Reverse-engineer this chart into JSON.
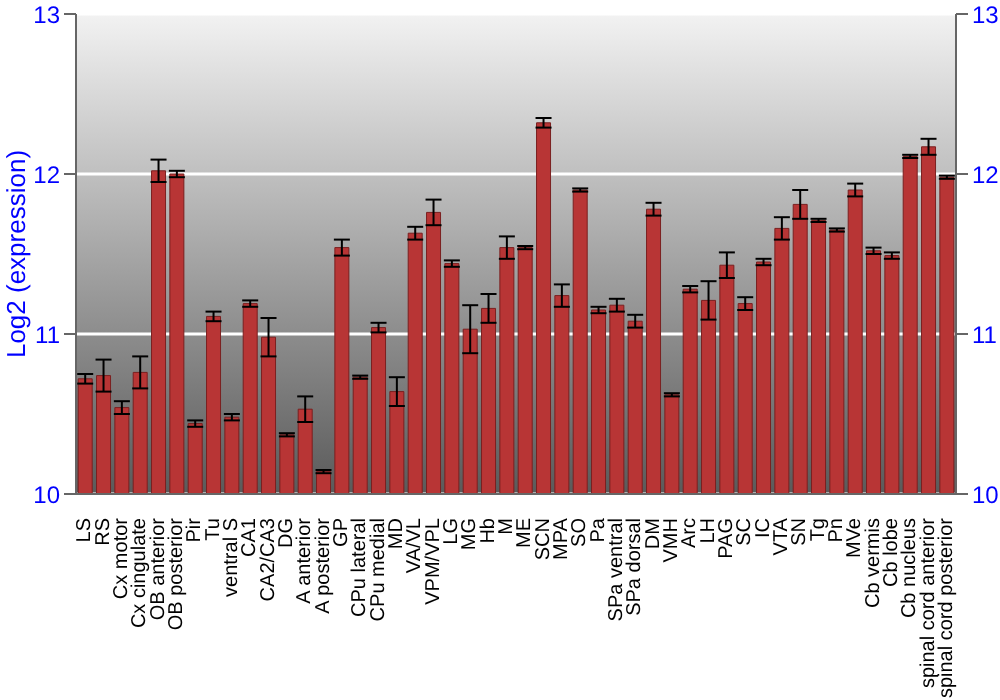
{
  "chart_data": {
    "type": "bar",
    "ylabel": "Log2 (expression)",
    "categories": [
      "LS",
      "RS",
      "Cx motor",
      "Cx cingulate",
      "OB anterior",
      "OB posterior",
      "Pir",
      "Tu",
      "ventral S",
      "CA1",
      "CA2/CA3",
      "DG",
      "A anterior",
      "A posterior",
      "GP",
      "CPu lateral",
      "CPu medial",
      "MD",
      "VA/VL",
      "VPM/VPL",
      "LG",
      "MG",
      "Hb",
      "M",
      "ME",
      "SCN",
      "MPA",
      "SO",
      "Pa",
      "SPa ventral",
      "SPa dorsal",
      "DM",
      "VMH",
      "Arc",
      "LH",
      "PAG",
      "SC",
      "IC",
      "VTA",
      "SN",
      "Tg",
      "Pn",
      "MVe",
      "Cb vermis",
      "Cb lobe",
      "Cb nucleus",
      "spinal cord anterior",
      "spinal cord posterior"
    ],
    "values": [
      10.72,
      10.74,
      10.54,
      10.76,
      12.02,
      12.0,
      10.44,
      11.11,
      10.48,
      11.19,
      10.98,
      10.37,
      10.53,
      10.14,
      11.54,
      10.73,
      11.04,
      10.64,
      11.63,
      11.76,
      11.44,
      11.03,
      11.16,
      11.54,
      11.54,
      12.32,
      11.24,
      11.9,
      11.15,
      11.18,
      11.08,
      11.78,
      10.62,
      11.28,
      11.21,
      11.43,
      11.19,
      11.45,
      11.66,
      11.81,
      11.71,
      11.65,
      11.9,
      11.52,
      11.49,
      12.11,
      12.17,
      11.98
    ],
    "errors": [
      0.03,
      0.1,
      0.04,
      0.1,
      0.07,
      0.02,
      0.02,
      0.03,
      0.02,
      0.02,
      0.12,
      0.01,
      0.08,
      0.01,
      0.05,
      0.01,
      0.03,
      0.09,
      0.04,
      0.08,
      0.02,
      0.15,
      0.09,
      0.07,
      0.01,
      0.03,
      0.07,
      0.01,
      0.02,
      0.04,
      0.04,
      0.04,
      0.01,
      0.02,
      0.12,
      0.08,
      0.04,
      0.02,
      0.07,
      0.09,
      0.01,
      0.01,
      0.04,
      0.02,
      0.02,
      0.01,
      0.05,
      0.01
    ],
    "color": "#b83535",
    "ylim": [
      10,
      13
    ],
    "yticks": [
      10,
      11,
      12,
      13
    ],
    "y2lim": [
      10,
      13
    ],
    "y2ticks": [
      10,
      11,
      12,
      13
    ],
    "grid": "y"
  }
}
